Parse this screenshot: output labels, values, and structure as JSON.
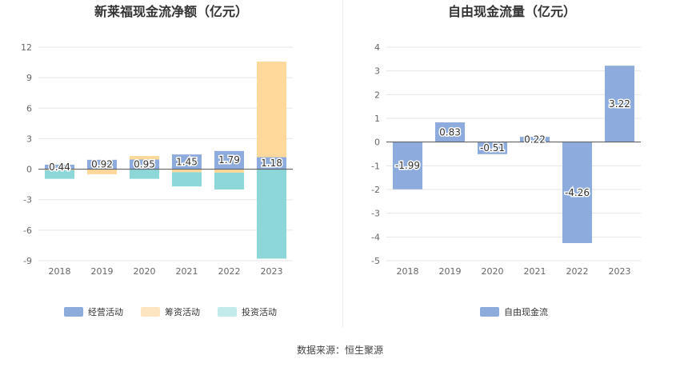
{
  "source_text": "数据来源：恒生聚源",
  "chart_data": [
    {
      "type": "bar",
      "stacked": true,
      "title": "新莱福现金流净额（亿元）",
      "categories": [
        "2018",
        "2019",
        "2020",
        "2021",
        "2022",
        "2023"
      ],
      "series": [
        {
          "name": "经营活动",
          "values": [
            0.44,
            0.92,
            0.95,
            1.45,
            1.79,
            1.18
          ],
          "color": "#8dabdc"
        },
        {
          "name": "筹资活动",
          "values": [
            -0.1,
            -0.5,
            0.35,
            -0.3,
            -0.35,
            9.4
          ],
          "color": "#fed99b"
        },
        {
          "name": "投资活动",
          "values": [
            -0.85,
            0.0,
            -0.95,
            -1.4,
            -1.65,
            -8.8
          ],
          "color": "#8dd7d9"
        }
      ],
      "data_labels": [
        "0.44",
        "0.92",
        "0.95",
        "1.45",
        "1.79",
        "1.18"
      ],
      "yticks": [
        "12",
        "9",
        "6",
        "3",
        "0",
        "-3",
        "-6",
        "-9"
      ],
      "ylim": [
        -9,
        12
      ],
      "grid": true,
      "legend_position": "bottom",
      "legend_colors": [
        "#8dabdc",
        "#fde6bf",
        "#c3ebec"
      ]
    },
    {
      "type": "bar",
      "title": "自由现金流量（亿元）",
      "categories": [
        "2018",
        "2019",
        "2020",
        "2021",
        "2022",
        "2023"
      ],
      "series": [
        {
          "name": "自由现金流",
          "values": [
            -1.99,
            0.83,
            -0.51,
            0.22,
            -4.26,
            3.22
          ],
          "color": "#8dabdc"
        }
      ],
      "data_labels": [
        "-1.99",
        "0.83",
        "-0.51",
        "0.22",
        "-4.26",
        "3.22"
      ],
      "yticks": [
        "4",
        "3",
        "2",
        "1",
        "0",
        "-1",
        "-2",
        "-3",
        "-4",
        "-5"
      ],
      "ylim": [
        -5,
        4
      ],
      "grid": true,
      "legend_position": "bottom",
      "legend_colors": [
        "#8dabdc"
      ]
    }
  ]
}
